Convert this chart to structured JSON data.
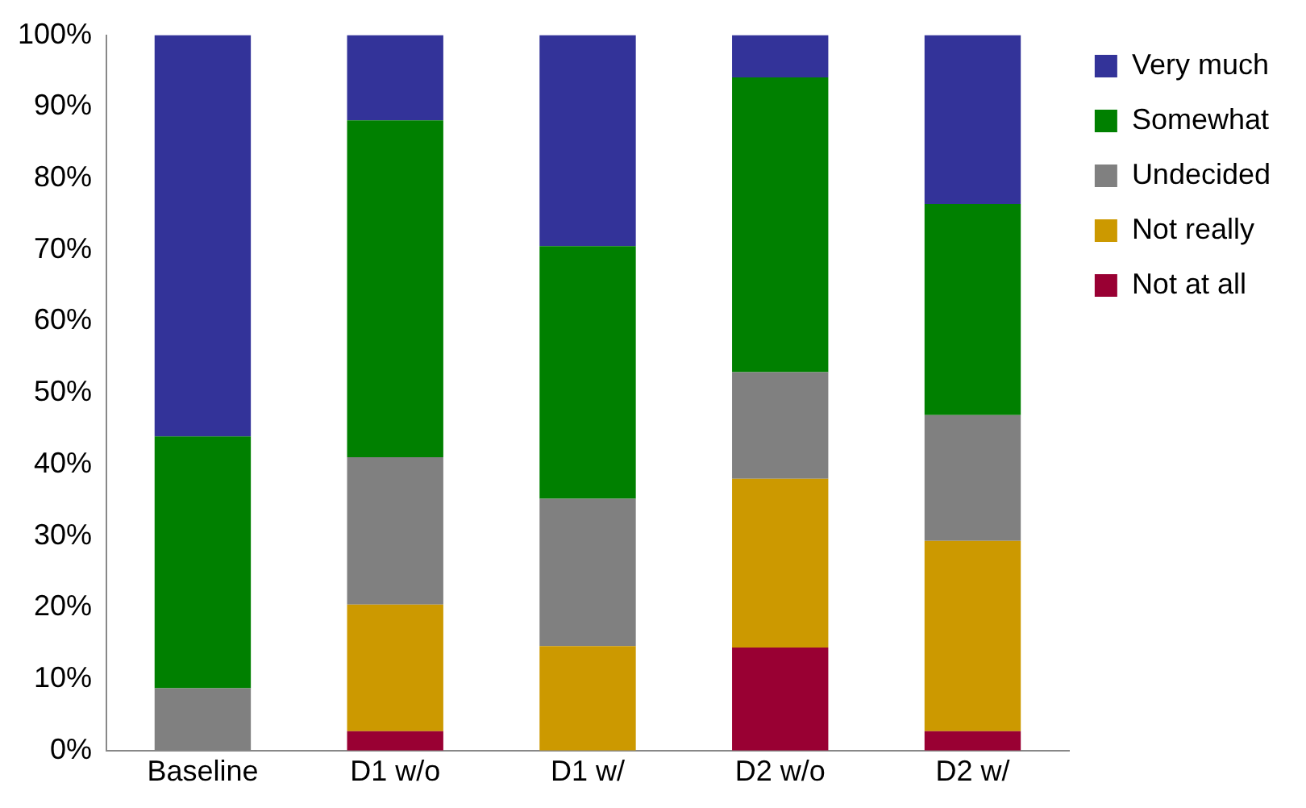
{
  "chart_data": {
    "type": "bar",
    "stacked": true,
    "categories": [
      "Baseline",
      "D1 w/o",
      "D1 w/",
      "D2 w/o",
      "D2 w/"
    ],
    "series": [
      {
        "name": "Not at all",
        "color": "#990033",
        "values": [
          0,
          2.7,
          0,
          14.4,
          2.7
        ]
      },
      {
        "name": "Not really",
        "color": "#cc9900",
        "values": [
          0,
          17.7,
          14.6,
          23.6,
          26.6
        ]
      },
      {
        "name": "Undecided",
        "color": "#808080",
        "values": [
          8.7,
          20.6,
          20.6,
          14.9,
          17.6
        ]
      },
      {
        "name": "Somewhat",
        "color": "#008000",
        "values": [
          35.2,
          47.1,
          35.3,
          41.2,
          29.5
        ]
      },
      {
        "name": "Very much",
        "color": "#333399",
        "values": [
          56.1,
          11.9,
          29.5,
          5.9,
          23.6
        ]
      }
    ],
    "ylim": [
      0,
      100
    ],
    "yticks": [
      {
        "value": 0,
        "label": "0%"
      },
      {
        "value": 10,
        "label": "10%"
      },
      {
        "value": 20,
        "label": "20%"
      },
      {
        "value": 30,
        "label": "30%"
      },
      {
        "value": 40,
        "label": "40%"
      },
      {
        "value": 50,
        "label": "50%"
      },
      {
        "value": 60,
        "label": "60%"
      },
      {
        "value": 70,
        "label": "70%"
      },
      {
        "value": 80,
        "label": "80%"
      },
      {
        "value": 90,
        "label": "90%"
      },
      {
        "value": 100,
        "label": "100%"
      }
    ],
    "grid": false,
    "legend": "right"
  }
}
